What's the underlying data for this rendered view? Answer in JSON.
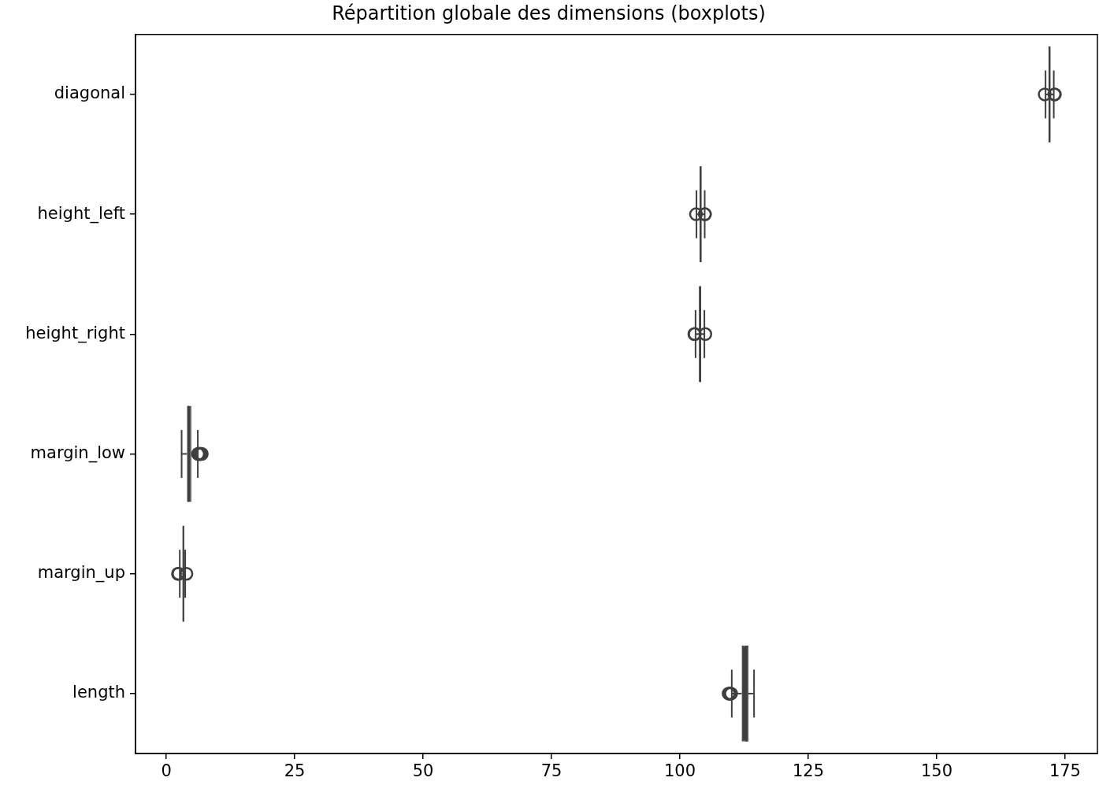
{
  "chart_data": {
    "type": "box",
    "orientation": "horizontal",
    "title": "Répartition globale des dimensions (boxplots)",
    "categories": [
      "diagonal",
      "height_left",
      "height_right",
      "margin_low",
      "margin_up",
      "length"
    ],
    "boxes": [
      {
        "low": 171.2,
        "q1": 171.75,
        "median": 171.99,
        "q3": 172.17,
        "high": 172.8,
        "outliers": [
          171.04,
          172.92,
          173.01
        ]
      },
      {
        "low": 103.23,
        "q1": 103.82,
        "median": 104.04,
        "q3": 104.23,
        "high": 104.83,
        "outliers": [
          103.14,
          104.86,
          104.88
        ]
      },
      {
        "low": 103.05,
        "q1": 103.71,
        "median": 103.92,
        "q3": 104.15,
        "high": 104.77,
        "outliers": [
          102.82,
          102.91,
          104.95
        ]
      },
      {
        "low": 2.98,
        "q1": 4.02,
        "median": 4.31,
        "q3": 4.87,
        "high": 6.13,
        "outliers": [
          6.19,
          6.28,
          6.4,
          6.56,
          6.7,
          6.9
        ]
      },
      {
        "low": 2.62,
        "q1": 3.14,
        "median": 3.32,
        "q3": 3.47,
        "high": 3.68,
        "outliers": [
          2.27,
          2.4,
          3.91
        ]
      },
      {
        "low": 110.1,
        "q1": 112.03,
        "median": 112.96,
        "q3": 113.34,
        "high": 114.44,
        "outliers": [
          109.49,
          109.6,
          109.8,
          109.97
        ]
      }
    ],
    "colors": [
      "#3f3f3f",
      "#3f3f3f",
      "#3f3f3f",
      "#3f3f3f",
      "#3f3f3f",
      "#3f3f3f"
    ],
    "xlim": [
      -6,
      181.3
    ],
    "xticks": [
      0,
      25,
      50,
      75,
      100,
      125,
      150,
      175
    ],
    "grid": false
  }
}
